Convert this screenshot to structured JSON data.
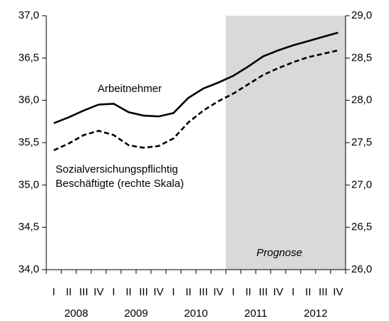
{
  "chart_data": {
    "type": "line",
    "categories": [
      "I",
      "II",
      "III",
      "IV",
      "I",
      "II",
      "III",
      "IV",
      "I",
      "II",
      "III",
      "IV",
      "I",
      "II",
      "III",
      "IV",
      "I",
      "II",
      "III",
      "IV"
    ],
    "years": [
      "2008",
      "2009",
      "2010",
      "2011",
      "2012"
    ],
    "series": [
      {
        "name": "Arbeitnehmer",
        "color": "#000000",
        "dashed": false,
        "axis": "y",
        "values": [
          35.73,
          35.8,
          35.88,
          35.95,
          35.96,
          35.86,
          35.82,
          35.81,
          35.85,
          36.03,
          36.14,
          36.21,
          36.29,
          36.4,
          36.52,
          36.59,
          36.65,
          36.7,
          36.75,
          36.8
        ]
      },
      {
        "name": "Sozialversichungspflichtig Beschäftigte (rechte Skala)",
        "color": "#000000",
        "dashed": true,
        "axis": "y2",
        "values": [
          27.41,
          27.49,
          27.59,
          27.64,
          27.59,
          27.47,
          27.44,
          27.46,
          27.55,
          27.74,
          27.88,
          27.99,
          28.08,
          28.19,
          28.3,
          28.38,
          28.45,
          28.51,
          28.55,
          28.59
        ]
      }
    ],
    "prognosis": {
      "label": "Prognose",
      "start": 12,
      "color": "#d9d9d9"
    },
    "ylim": [
      34,
      37
    ],
    "yticks": [
      {
        "value": 34,
        "label": "34,0"
      },
      {
        "value": 34.5,
        "label": "34,5"
      },
      {
        "value": 35,
        "label": "35,0"
      },
      {
        "value": 35.5,
        "label": "35,5"
      },
      {
        "value": 36,
        "label": "36,0"
      },
      {
        "value": 36.5,
        "label": "36,5"
      },
      {
        "value": 37,
        "label": "37,0"
      }
    ],
    "y2lim": [
      26,
      29
    ],
    "y2ticks": [
      {
        "value": 26,
        "label": "26,0"
      },
      {
        "value": 26.5,
        "label": "26,5"
      },
      {
        "value": 27,
        "label": "27,0"
      },
      {
        "value": 27.5,
        "label": "27,5"
      },
      {
        "value": 28,
        "label": "28,0"
      },
      {
        "value": 28.5,
        "label": "28,5"
      },
      {
        "value": 29,
        "label": "29,0"
      }
    ]
  }
}
